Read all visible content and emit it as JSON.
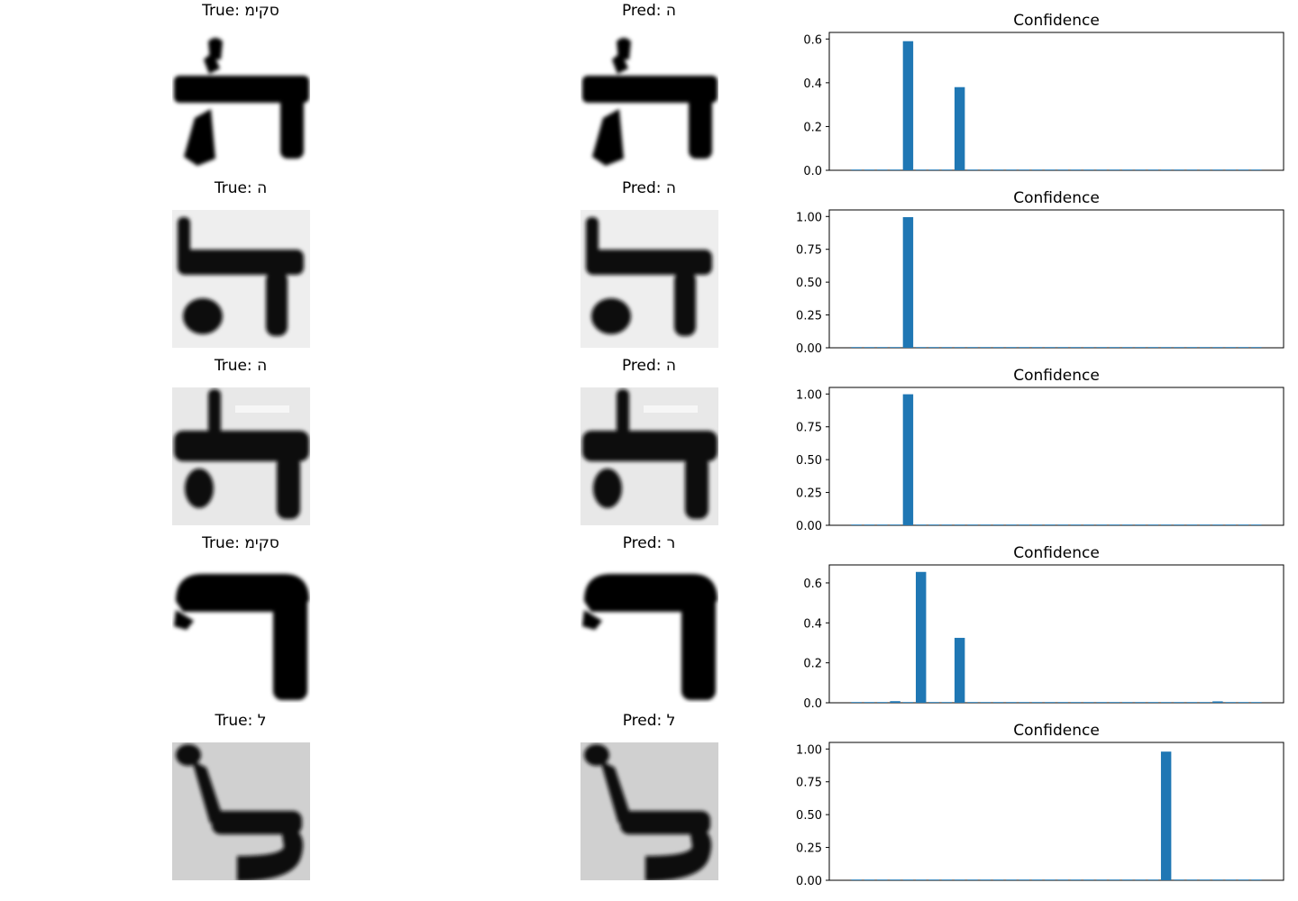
{
  "rows": [
    {
      "true_label": "True: סקימ",
      "pred_label": "Pred: ה",
      "glyph": "he-variant-a",
      "bg": "#ffffff",
      "panel_title": "Confidence"
    },
    {
      "true_label": "True: ה",
      "pred_label": "Pred: ה",
      "glyph": "he-variant-b",
      "bg": "#f2f2f2",
      "panel_title": "Confidence"
    },
    {
      "true_label": "True: ה",
      "pred_label": "Pred: ה",
      "glyph": "he-variant-c",
      "bg": "#ececec",
      "panel_title": "Confidence"
    },
    {
      "true_label": "True: סקימ",
      "pred_label": "Pred: ר",
      "glyph": "resh",
      "bg": "#ffffff",
      "panel_title": "Confidence"
    },
    {
      "true_label": "True: ל",
      "pred_label": "Pred: ל",
      "glyph": "lamed",
      "bg": "#d6d6d6",
      "panel_title": "Confidence"
    }
  ],
  "chart_data": [
    {
      "type": "bar",
      "title": "Confidence",
      "ylim": [
        0,
        0.63
      ],
      "yticks": [
        "0.0",
        "0.2",
        "0.4",
        "0.6"
      ],
      "ytick_values": [
        0,
        0.2,
        0.4,
        0.6
      ],
      "bar_color": "#1f77b4",
      "values": [
        0.001,
        0.001,
        0.001,
        0.001,
        0.59,
        0.001,
        0.001,
        0.001,
        0.38,
        0.001,
        0.001,
        0.001,
        0.001,
        0.001,
        0.001,
        0.001,
        0.001,
        0.001,
        0.001,
        0.001,
        0.001,
        0.001,
        0.001,
        0.001,
        0.001,
        0.001,
        0.001,
        0.001,
        0.001,
        0.001,
        0.001,
        0.001
      ]
    },
    {
      "type": "bar",
      "title": "Confidence",
      "ylim": [
        0,
        1.05
      ],
      "yticks": [
        "0.00",
        "0.25",
        "0.50",
        "0.75",
        "1.00"
      ],
      "ytick_values": [
        0,
        0.25,
        0.5,
        0.75,
        1.0
      ],
      "bar_color": "#1f77b4",
      "values": [
        0.001,
        0.001,
        0.001,
        0.001,
        0.995,
        0.001,
        0.001,
        0.001,
        0.001,
        0.001,
        0.001,
        0.001,
        0.001,
        0.001,
        0.001,
        0.001,
        0.001,
        0.001,
        0.001,
        0.001,
        0.001,
        0.001,
        0.001,
        0.001,
        0.001,
        0.001,
        0.001,
        0.001,
        0.001,
        0.001,
        0.001,
        0.001
      ]
    },
    {
      "type": "bar",
      "title": "Confidence",
      "ylim": [
        0,
        1.05
      ],
      "yticks": [
        "0.00",
        "0.25",
        "0.50",
        "0.75",
        "1.00"
      ],
      "ytick_values": [
        0,
        0.25,
        0.5,
        0.75,
        1.0
      ],
      "bar_color": "#1f77b4",
      "values": [
        0.001,
        0.001,
        0.001,
        0.001,
        0.998,
        0.001,
        0.001,
        0.001,
        0.001,
        0.001,
        0.001,
        0.001,
        0.001,
        0.001,
        0.001,
        0.001,
        0.001,
        0.001,
        0.001,
        0.001,
        0.001,
        0.001,
        0.001,
        0.001,
        0.001,
        0.001,
        0.001,
        0.001,
        0.001,
        0.001,
        0.001,
        0.001
      ]
    },
    {
      "type": "bar",
      "title": "Confidence",
      "ylim": [
        0,
        0.69
      ],
      "yticks": [
        "0.0",
        "0.2",
        "0.4",
        "0.6"
      ],
      "ytick_values": [
        0,
        0.2,
        0.4,
        0.6
      ],
      "bar_color": "#1f77b4",
      "values": [
        0.001,
        0.001,
        0.001,
        0.008,
        0.001,
        0.655,
        0.001,
        0.001,
        0.325,
        0.001,
        0.001,
        0.001,
        0.001,
        0.001,
        0.001,
        0.001,
        0.001,
        0.001,
        0.001,
        0.001,
        0.001,
        0.001,
        0.001,
        0.001,
        0.001,
        0.001,
        0.001,
        0.001,
        0.007,
        0.001,
        0.001,
        0.001
      ]
    },
    {
      "type": "bar",
      "title": "Confidence",
      "ylim": [
        0,
        1.05
      ],
      "yticks": [
        "0.00",
        "0.25",
        "0.50",
        "0.75",
        "1.00"
      ],
      "ytick_values": [
        0,
        0.25,
        0.5,
        0.75,
        1.0
      ],
      "bar_color": "#1f77b4",
      "values": [
        0.001,
        0.001,
        0.001,
        0.001,
        0.001,
        0.001,
        0.001,
        0.001,
        0.001,
        0.001,
        0.001,
        0.001,
        0.001,
        0.001,
        0.001,
        0.001,
        0.001,
        0.001,
        0.001,
        0.001,
        0.001,
        0.001,
        0.001,
        0.001,
        0.98,
        0.001,
        0.001,
        0.001,
        0.001,
        0.001,
        0.001,
        0.001
      ]
    }
  ]
}
